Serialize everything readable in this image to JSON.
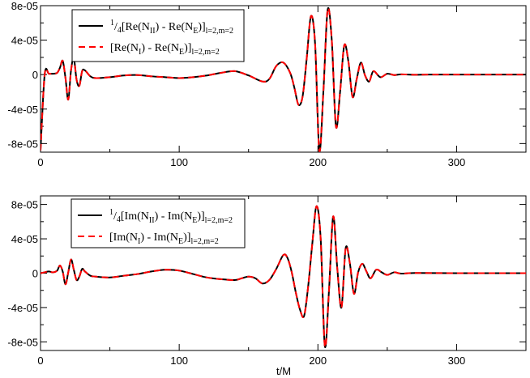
{
  "chart_data": [
    {
      "type": "line",
      "xlim": [
        0,
        350
      ],
      "ylim": [
        -9e-05,
        8e-05
      ],
      "xticks": [
        "0",
        "100",
        "200",
        "300"
      ],
      "yticks": [
        "8e-05",
        "4e-05",
        "0",
        "-4e-05",
        "-8e-05"
      ],
      "xlabel": "",
      "legend_position": "top-left",
      "legend": [
        {
          "prefix_sup": "1",
          "prefix_sub": "4",
          "text": "[Re(N",
          "sub1": "II",
          "mid": ") - Re(N",
          "sub2": "E",
          "end": ")]",
          "sub3": "l=2,m=2"
        },
        {
          "prefix_sup": "",
          "prefix_sub": "",
          "text": "[Re(N",
          "sub1": "I",
          "mid": ") - Re(N",
          "sub2": "E",
          "end": ")]",
          "sub3": "l=2,m=2"
        }
      ],
      "series": [
        {
          "color": "#000000",
          "dash": "solid"
        },
        {
          "color": "#ff0000",
          "dash": "dashed"
        }
      ],
      "x": [
        0,
        3,
        6,
        9,
        12,
        14,
        16,
        18,
        20,
        22,
        24,
        26,
        28,
        30,
        32,
        36,
        40,
        50,
        60,
        70,
        80,
        90,
        100,
        110,
        120,
        130,
        140,
        150,
        160,
        165,
        170,
        175,
        180,
        183,
        186,
        189,
        192,
        195,
        198,
        201,
        204,
        207,
        210,
        213,
        216,
        219,
        222,
        225,
        228,
        231,
        234,
        237,
        240,
        245,
        250,
        255,
        260,
        270,
        280,
        300,
        350
      ],
      "values": [
        -8.8e-05,
        2e-07,
        1e-06,
        1e-06,
        2e-06,
        8e-06,
        1.6e-05,
        -4e-06,
        -2.9e-05,
        5e-06,
        1.9e-05,
        -6e-06,
        -1.3e-05,
        4e-06,
        5e-06,
        -2e-06,
        -4e-06,
        -3e-06,
        -1e-06,
        -5e-07,
        -2e-06,
        -3e-06,
        -4e-06,
        -3e-06,
        -1e-06,
        2e-06,
        4e-06,
        -1e-06,
        -8e-06,
        -5e-06,
        1e-05,
        1.4e-05,
        2e-06,
        -1.5e-05,
        -3.5e-05,
        -2.5e-05,
        2e-05,
        6.8e-05,
        3.5e-05,
        -8.8e-05,
        -1.8e-05,
        7.5e-05,
        4e-05,
        -6e-05,
        -2e-05,
        3.4e-05,
        1.5e-05,
        -2.6e-05,
        -5e-06,
        1.4e-05,
        -1e-06,
        -8e-06,
        4e-06,
        -3e-06,
        1e-06,
        -5e-07,
        3e-07,
        -2e-07,
        0,
        0,
        0
      ]
    },
    {
      "type": "line",
      "xlim": [
        0,
        350
      ],
      "ylim": [
        -9e-05,
        9e-05
      ],
      "xticks": [
        "0",
        "100",
        "200",
        "300"
      ],
      "yticks": [
        "8e-05",
        "4e-05",
        "0",
        "-4e-05",
        "-8e-05"
      ],
      "xlabel": "t/M",
      "legend_position": "top-left",
      "legend": [
        {
          "prefix_sup": "1",
          "prefix_sub": "4",
          "text": "[Im(N",
          "sub1": "II",
          "mid": ") - Im(N",
          "sub2": "E",
          "end": ")]",
          "sub3": "l=2,m=2"
        },
        {
          "prefix_sup": "",
          "prefix_sub": "",
          "text": "[Im(N",
          "sub1": "I",
          "mid": ") - Im(N",
          "sub2": "E",
          "end": ")]",
          "sub3": "l=2,m=2"
        }
      ],
      "series": [
        {
          "color": "#000000",
          "dash": "solid"
        },
        {
          "color": "#ff0000",
          "dash": "dashed"
        }
      ],
      "x": [
        0,
        3,
        6,
        9,
        12,
        14,
        16,
        18,
        20,
        22,
        24,
        26,
        28,
        30,
        32,
        36,
        40,
        50,
        60,
        70,
        80,
        90,
        100,
        110,
        120,
        130,
        140,
        145,
        150,
        155,
        160,
        165,
        170,
        175,
        178,
        181,
        184,
        187,
        190,
        193,
        196,
        199,
        202,
        205,
        208,
        211,
        214,
        217,
        220,
        223,
        226,
        229,
        232,
        235,
        238,
        242,
        246,
        250,
        255,
        260,
        270,
        300,
        350
      ],
      "values": [
        0,
        1e-06,
        2e-06,
        1e-06,
        3e-06,
        9e-06,
        2e-06,
        -1.3e-05,
        1e-06,
        1.6e-05,
        4e-06,
        -8e-06,
        -4e-06,
        5e-06,
        2e-06,
        -3e-06,
        -4e-06,
        -5e-06,
        -3e-06,
        -1e-06,
        2e-06,
        4e-06,
        3e-06,
        -1e-06,
        -5e-06,
        -7e-06,
        -8e-06,
        -6e-06,
        -4e-06,
        -6e-06,
        -1.2e-05,
        -8e-06,
        5e-06,
        2.1e-05,
        1.8e-05,
        2e-06,
        -2.2e-05,
        -4.2e-05,
        -5e-05,
        -1.5e-05,
        3.5e-05,
        7.8e-05,
        4e-05,
        -8.5e-05,
        -2e-05,
        6.6e-05,
        5e-06,
        -4e-05,
        2.9e-05,
        1.2e-05,
        -2.4e-05,
        1e-06,
        1.1e-05,
        2e-06,
        -6e-06,
        4e-06,
        1e-06,
        -2e-06,
        1e-06,
        -5e-07,
        2e-07,
        0,
        0
      ]
    }
  ]
}
